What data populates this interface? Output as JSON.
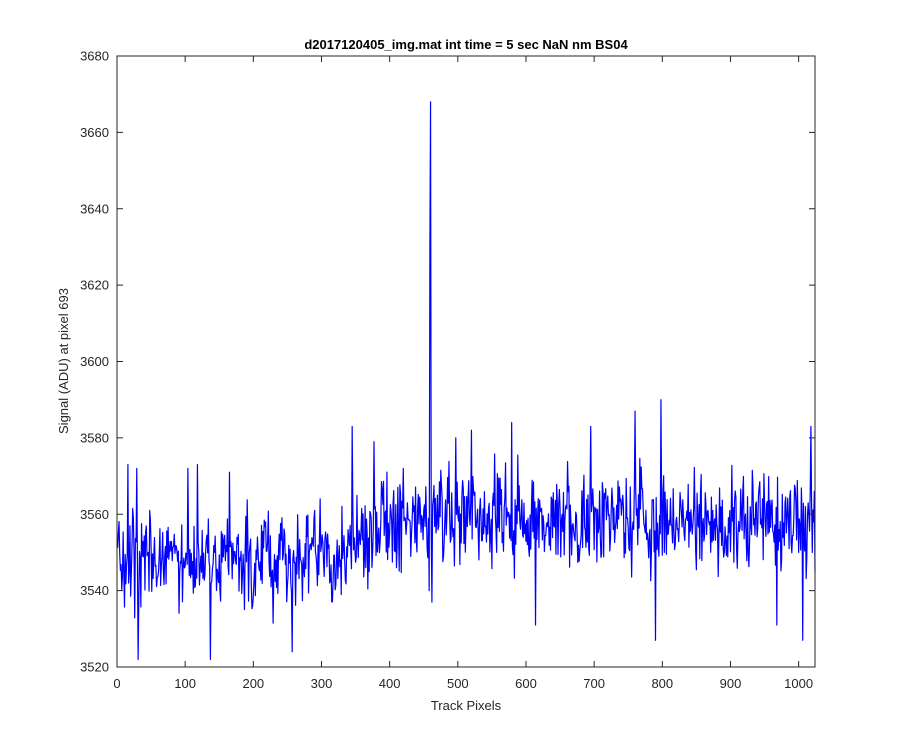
{
  "chart_data": {
    "type": "line",
    "title": "d2017120405_img.mat int time = 5 sec  NaN nm BS04",
    "xlabel": "Track Pixels",
    "ylabel": "Signal (ADU) at pixel 693",
    "xlim": [
      0,
      1024
    ],
    "ylim": [
      3520,
      3680
    ],
    "xticks": [
      0,
      100,
      200,
      300,
      400,
      500,
      600,
      700,
      800,
      900,
      1000
    ],
    "yticks": [
      3520,
      3540,
      3560,
      3580,
      3600,
      3620,
      3640,
      3660,
      3680
    ],
    "grid": false,
    "legend": "none",
    "series": [
      {
        "color": "#0000ff",
        "noise": {
          "count": 1024,
          "x_start": 1,
          "baseline": [
            [
              1,
              3548
            ],
            [
              330,
              3549
            ],
            [
              380,
              3556
            ],
            [
              470,
              3560
            ],
            [
              1024,
              3557
            ]
          ],
          "spread": 8
        },
        "points": [
          [
            16,
            3573
          ],
          [
            29,
            3572
          ],
          [
            31,
            3522
          ],
          [
            104,
            3572
          ],
          [
            118,
            3573
          ],
          [
            137,
            3522
          ],
          [
            165,
            3571
          ],
          [
            257,
            3524
          ],
          [
            345,
            3583
          ],
          [
            370,
            3545
          ],
          [
            377,
            3579
          ],
          [
            410,
            3546
          ],
          [
            420,
            3572
          ],
          [
            458,
            3540
          ],
          [
            459,
            3628
          ],
          [
            460,
            3668
          ],
          [
            461,
            3555
          ],
          [
            462,
            3537
          ],
          [
            497,
            3580
          ],
          [
            520,
            3582
          ],
          [
            579,
            3584
          ],
          [
            614,
            3531
          ],
          [
            695,
            3583
          ],
          [
            760,
            3587
          ],
          [
            790,
            3527
          ],
          [
            798,
            3590
          ],
          [
            968,
            3531
          ],
          [
            1006,
            3527
          ],
          [
            1018,
            3583
          ],
          [
            1024,
            3545
          ]
        ]
      }
    ]
  }
}
